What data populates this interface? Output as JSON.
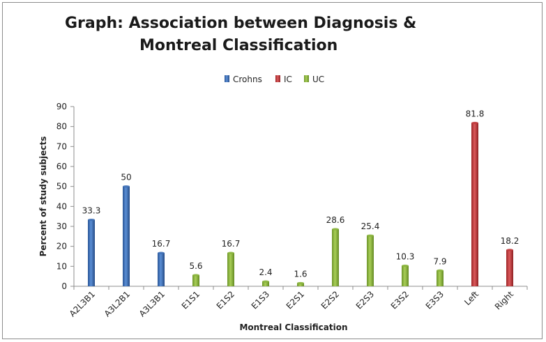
{
  "chart_data": {
    "type": "bar",
    "title_line1": "Graph: Association between Diagnosis &",
    "title_line2": "Montreal Classification",
    "xlabel": "Montreal Classification",
    "ylabel": "Percent of study subjects",
    "ylim": [
      0,
      90
    ],
    "yticks": [
      0,
      10,
      20,
      30,
      40,
      50,
      60,
      70,
      80,
      90
    ],
    "grid": false,
    "legend_position": "top",
    "categories": [
      "A2L3B1",
      "A3L2B1",
      "A3L3B1",
      "E1S1",
      "E1S2",
      "E1S3",
      "E2S1",
      "E2S2",
      "E2S3",
      "E3S2",
      "E3S3",
      "Left",
      "Right"
    ],
    "series": [
      {
        "name": "Crohns",
        "color": "#3d6fb6",
        "values": [
          33.3,
          50,
          16.7,
          null,
          null,
          null,
          null,
          null,
          null,
          null,
          null,
          null,
          null
        ]
      },
      {
        "name": "IC",
        "color": "#c0393b",
        "values": [
          null,
          null,
          null,
          null,
          null,
          null,
          null,
          null,
          null,
          null,
          null,
          81.8,
          18.2
        ]
      },
      {
        "name": "UC",
        "color": "#8ab43c",
        "values": [
          null,
          null,
          null,
          5.6,
          16.7,
          2.4,
          1.6,
          28.6,
          25.4,
          10.3,
          7.9,
          null,
          null
        ]
      }
    ],
    "data_labels": [
      "33.3",
      "50",
      "16.7",
      "5.6",
      "16.7",
      "2.4",
      "1.6",
      "28.6",
      "25.4",
      "10.3",
      "7.9",
      "81.8",
      "18.2"
    ]
  }
}
